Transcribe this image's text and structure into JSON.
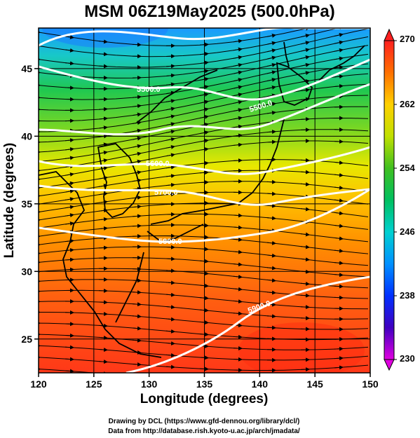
{
  "title": "MSM 06Z19May2025 (500.0hPa)",
  "map": {
    "xlabel": "Longitude (degrees)",
    "ylabel": "Latitude  (degrees)",
    "lon_range": [
      120,
      150
    ],
    "lat_range": [
      22.5,
      48
    ],
    "lon_ticks": [
      "120",
      "125",
      "130",
      "135",
      "140",
      "145",
      "150"
    ],
    "lat_ticks": [
      "25",
      "30",
      "35",
      "40",
      "45"
    ],
    "grid": true
  },
  "colorbar": {
    "min": 230,
    "max": 270,
    "tick_labels": [
      "270",
      "262",
      "254",
      "246",
      "238",
      "230"
    ],
    "colors": [
      "#e000e0",
      "#4000c0",
      "#0040ff",
      "#00c0ff",
      "#00e090",
      "#20c030",
      "#a0e000",
      "#ffff00",
      "#ffa000",
      "#ff4000",
      "#e02020"
    ]
  },
  "contours": [
    {
      "label": "5500.0"
    },
    {
      "label": "5600.0"
    },
    {
      "label": "5700.0"
    },
    {
      "label": "5800.0"
    },
    {
      "label": "5900.0"
    },
    {
      "label": "5500.0"
    }
  ],
  "credits": {
    "line1": "Drawing by DCL (https://www.gfd-dennou.org/library/dcl/)",
    "line2": "Data from http://database.rish.kyoto-u.ac.jp/arch/jmadata/"
  }
}
